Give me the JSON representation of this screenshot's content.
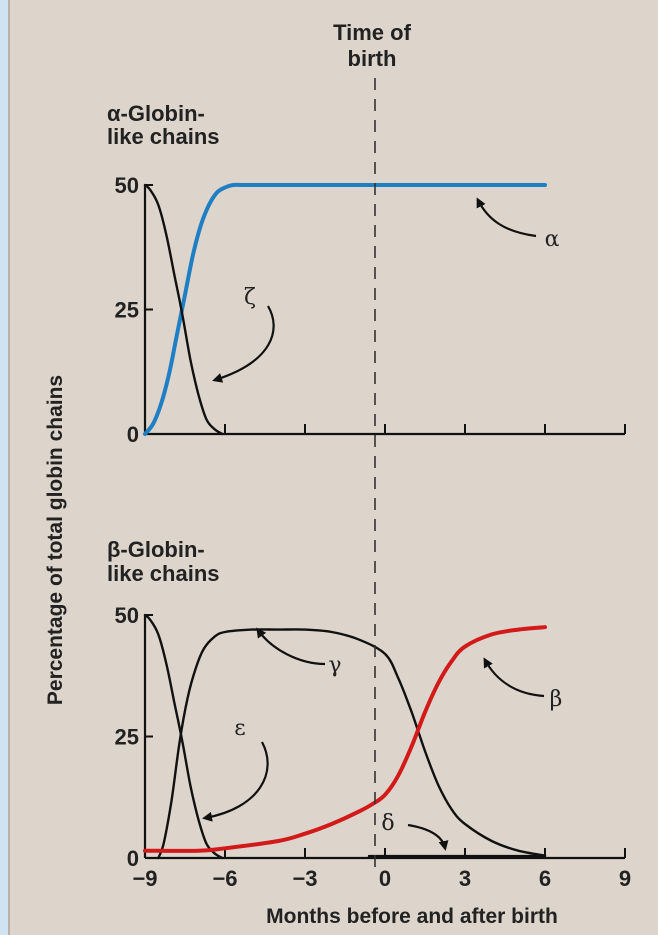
{
  "chart_data": [
    {
      "type": "line",
      "panel_title": [
        "α-Globin-",
        "like chains"
      ],
      "ylabel": "Percentage of total globin chains",
      "xlabel": "Months before and after birth",
      "xlim": [
        -9,
        9
      ],
      "ylim": [
        0,
        50
      ],
      "yticks": [
        "0",
        "25",
        "50"
      ],
      "xticks": [
        -9,
        -6,
        -3,
        0,
        3,
        6,
        9
      ],
      "grid": false,
      "annotation": [
        "Time of",
        "birth"
      ],
      "series": [
        {
          "name": "α",
          "color": "#1f7fc4",
          "x": [
            -9,
            -8.7,
            -8.4,
            -8.1,
            -7.8,
            -7.5,
            -7.2,
            -6.9,
            -6.6,
            -6.3,
            -6.0,
            -5.7,
            -5.4,
            -5.0,
            -3,
            0,
            3,
            6
          ],
          "y": [
            0,
            2,
            6,
            12,
            20,
            28,
            36,
            42,
            46,
            48.5,
            49.5,
            50,
            50,
            50,
            50,
            50,
            50,
            50
          ]
        },
        {
          "name": "ζ",
          "color": "#111111",
          "x": [
            -9,
            -8.8,
            -8.5,
            -8.2,
            -7.9,
            -7.6,
            -7.3,
            -7.0,
            -6.7,
            -6.4,
            -6.1
          ],
          "y": [
            50,
            49,
            46,
            40,
            32,
            24,
            15,
            8,
            3,
            1,
            0
          ]
        }
      ]
    },
    {
      "type": "line",
      "panel_title": [
        "β-Globin-",
        "like chains"
      ],
      "xlim": [
        -9,
        9
      ],
      "ylim": [
        0,
        50
      ],
      "yticks": [
        "0",
        "25",
        "50"
      ],
      "xticks": [
        -9,
        -6,
        -3,
        0,
        3,
        6,
        9
      ],
      "xtick_labels": [
        "−9",
        "−6",
        "−3",
        "0",
        "3",
        "6",
        "9"
      ],
      "grid": false,
      "series": [
        {
          "name": "γ",
          "color": "#111111",
          "x": [
            -8.5,
            -8.3,
            -8.0,
            -7.7,
            -7.4,
            -7.1,
            -6.8,
            -6.4,
            -6.0,
            -5.0,
            -4.0,
            -3.0,
            -2.0,
            -1.0,
            0.0,
            0.5,
            1.0,
            1.5,
            2.0,
            2.5,
            3.0,
            4.0,
            5.0,
            6.0
          ],
          "y": [
            0,
            3,
            12,
            24,
            33,
            39,
            43,
            45.5,
            46.5,
            47,
            47,
            47,
            46.5,
            45,
            42,
            37,
            30,
            22,
            15,
            10,
            7,
            3.5,
            1.5,
            0.5
          ]
        },
        {
          "name": "ε",
          "color": "#111111",
          "x": [
            -9,
            -8.8,
            -8.5,
            -8.2,
            -7.9,
            -7.6,
            -7.3,
            -7.0,
            -6.7,
            -6.4,
            -6.1
          ],
          "y": [
            50,
            49,
            46,
            40,
            32,
            24,
            15,
            8,
            3,
            1,
            0
          ]
        },
        {
          "name": "β",
          "color": "#d21a1a",
          "x": [
            -9,
            -7,
            -6,
            -4,
            -3,
            -2,
            -1,
            -0.5,
            0,
            0.5,
            1.0,
            1.5,
            2.0,
            2.5,
            3.0,
            4.0,
            5.0,
            6.0
          ],
          "y": [
            1.5,
            1.5,
            2,
            3.5,
            5,
            7,
            9.5,
            11,
            13,
            17,
            23,
            30,
            36,
            40.5,
            43.5,
            46,
            47,
            47.5
          ]
        },
        {
          "name": "δ",
          "color": "#111111",
          "x": [
            -0.6,
            6
          ],
          "y": [
            0.4,
            0.4
          ]
        }
      ]
    }
  ]
}
